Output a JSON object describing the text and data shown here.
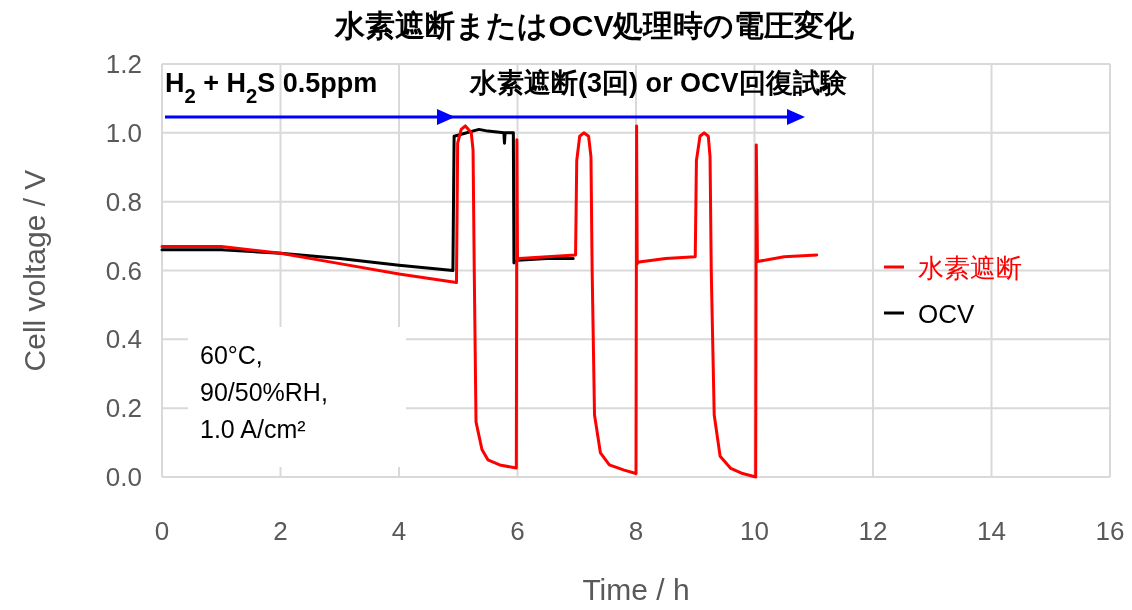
{
  "chart_data": {
    "type": "line",
    "title": "水素遮断またはOCV処理時の電圧変化",
    "xlabel": "Time / h",
    "ylabel": "Cell voltage / V",
    "xlim": [
      0,
      16
    ],
    "xticks": [
      0,
      2,
      4,
      6,
      8,
      10,
      12,
      14,
      16
    ],
    "ylim": [
      0,
      1.2
    ],
    "yticks": [
      {
        "value": 0,
        "label": "0.0"
      },
      {
        "value": 0.2,
        "label": "0.2"
      },
      {
        "value": 0.4,
        "label": "0.4"
      },
      {
        "value": 0.6,
        "label": "0.6"
      },
      {
        "value": 0.8,
        "label": "0.8"
      },
      {
        "value": 1.0,
        "label": "1.0"
      },
      {
        "value": 1.2,
        "label": "1.2"
      }
    ],
    "grid": true,
    "legend": "right",
    "line_style": "solid",
    "marker": "none",
    "series": [
      {
        "name": "水素遮断",
        "color": "#ff0000",
        "x": [
          0,
          1,
          2,
          3,
          4,
          4.97,
          4.99,
          5.05,
          5.12,
          5.22,
          5.25,
          5.27,
          5.3,
          5.4,
          5.5,
          5.7,
          5.98,
          5.99,
          6.0,
          6.03,
          6.5,
          6.98,
          7.0,
          7.05,
          7.12,
          7.2,
          7.24,
          7.26,
          7.3,
          7.4,
          7.55,
          7.8,
          8.0,
          8.01,
          8.02,
          8.05,
          8.5,
          9.0,
          9.02,
          9.08,
          9.15,
          9.22,
          9.25,
          9.27,
          9.32,
          9.42,
          9.6,
          9.8,
          10.02,
          10.03,
          10.05,
          10.5,
          11.05
        ],
        "values": [
          0.67,
          0.67,
          0.65,
          0.62,
          0.59,
          0.565,
          0.97,
          1.01,
          1.02,
          1.0,
          0.95,
          0.6,
          0.16,
          0.08,
          0.05,
          0.035,
          0.026,
          0.98,
          0.63,
          0.635,
          0.64,
          0.645,
          0.92,
          0.99,
          1.0,
          0.99,
          0.93,
          0.6,
          0.18,
          0.07,
          0.035,
          0.02,
          0.01,
          1.02,
          0.62,
          0.625,
          0.635,
          0.64,
          0.92,
          0.99,
          1.0,
          0.99,
          0.93,
          0.6,
          0.18,
          0.06,
          0.025,
          0.01,
          0.0,
          0.965,
          0.626,
          0.64,
          0.645
        ]
      },
      {
        "name": "OCV",
        "color": "#000000",
        "x": [
          0,
          1,
          2,
          3,
          4,
          4.91,
          4.93,
          5.35,
          5.5,
          5.77,
          5.78,
          5.79,
          5.93,
          5.94,
          6.0,
          6.5,
          6.94
        ],
        "values": [
          0.66,
          0.66,
          0.65,
          0.635,
          0.615,
          0.6,
          0.99,
          1.01,
          1.005,
          1.0,
          0.97,
          1.0,
          1.0,
          0.622,
          0.63,
          0.635,
          0.635
        ]
      }
    ],
    "annotations": [
      "H$_{2}$ + H$_{2}$S 0.5ppm",
      "水素遮断(3回) or OCV回復試験",
      "60°C,\n90/50%RH,\n1.0 A/cm²"
    ]
  }
}
